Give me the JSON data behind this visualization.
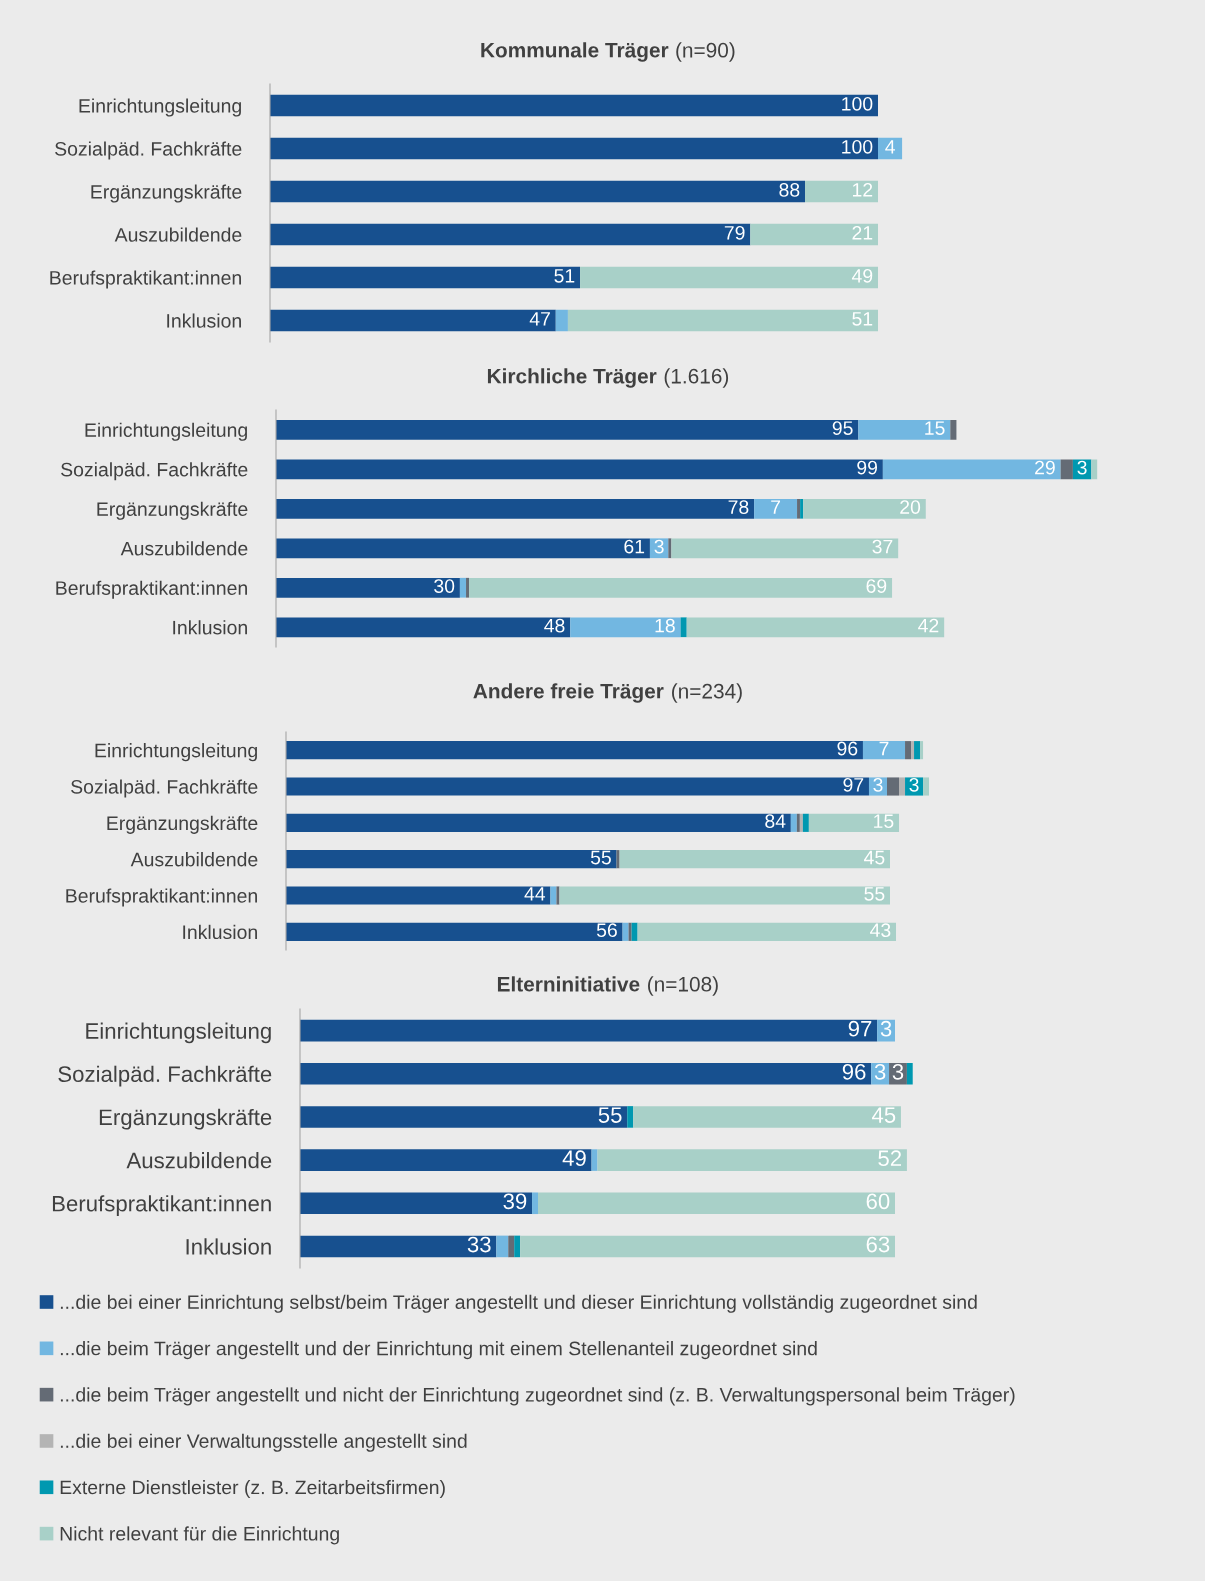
{
  "chart_data": [
    {
      "type": "bar",
      "orientation": "horizontal",
      "stacked": true,
      "title": "Kommunale Träger (n=90)",
      "tick_labels": "y",
      "categories": [
        "Einrichtungsleitung",
        "Sozialpäd. Fachkräfte",
        "Ergänzungskräfte",
        "Auszubildende",
        "Berufspraktikant:innen",
        "Inklusion"
      ],
      "series": [
        {
          "color": "#17508f",
          "values": [
            100,
            100,
            88,
            79,
            51,
            47
          ],
          "value_labels": [
            "100",
            "100",
            "88",
            "79",
            "51",
            "47"
          ]
        },
        {
          "color": "#72b7e1",
          "values": [
            null,
            4,
            null,
            null,
            null,
            2
          ],
          "value_labels": [
            null,
            "4",
            null,
            null,
            null,
            null
          ]
        },
        {
          "color": "#646b75",
          "values": [
            null,
            null,
            null,
            null,
            null,
            null
          ]
        },
        {
          "color": "#b4b4b4",
          "values": [
            null,
            null,
            null,
            null,
            null,
            null
          ]
        },
        {
          "color": "#0098b0",
          "values": [
            null,
            null,
            null,
            null,
            null,
            null
          ]
        },
        {
          "color": "#a8d0c8",
          "values": [
            null,
            null,
            12,
            21,
            49,
            51
          ],
          "value_labels": [
            null,
            null,
            "12",
            "21",
            "49",
            "51"
          ]
        }
      ]
    },
    {
      "type": "bar",
      "orientation": "horizontal",
      "stacked": true,
      "title": "Kirchliche Träger (1.616)",
      "tick_labels": "y",
      "categories": [
        "Einrichtungsleitung",
        "Sozialpäd. Fachkräfte",
        "Ergänzungskräfte",
        "Auszubildende",
        "Berufspraktikant:innen",
        "Inklusion"
      ],
      "series": [
        {
          "color": "#17508f",
          "values": [
            95,
            99,
            78,
            61,
            30,
            48
          ],
          "value_labels": [
            "95",
            "99",
            "78",
            "61",
            "30",
            "48"
          ]
        },
        {
          "color": "#72b7e1",
          "values": [
            15,
            29,
            7,
            3,
            1,
            18
          ],
          "value_labels": [
            "15",
            "29",
            "7",
            "3",
            null,
            "18"
          ]
        },
        {
          "color": "#646b75",
          "values": [
            1,
            2,
            0.5,
            0.5,
            0.5,
            null
          ]
        },
        {
          "color": "#b4b4b4",
          "values": [
            null,
            null,
            null,
            null,
            null,
            null
          ]
        },
        {
          "color": "#0098b0",
          "values": [
            null,
            3,
            0.5,
            null,
            null,
            1
          ],
          "value_labels": [
            null,
            "3",
            null,
            null,
            null,
            null
          ]
        },
        {
          "color": "#a8d0c8",
          "values": [
            null,
            1,
            20,
            37,
            69,
            42
          ],
          "value_labels": [
            null,
            null,
            "20",
            "37",
            "69",
            "42"
          ]
        }
      ]
    },
    {
      "type": "bar",
      "orientation": "horizontal",
      "stacked": true,
      "title": "Andere freie Träger (n=234)",
      "tick_labels": "y",
      "categories": [
        "Einrichtungsleitung",
        "Sozialpäd. Fachkräfte",
        "Ergänzungskräfte",
        "Auszubildende",
        "Berufspraktikant:innen",
        "Inklusion"
      ],
      "series": [
        {
          "color": "#17508f",
          "values": [
            96,
            97,
            84,
            55,
            44,
            56
          ],
          "value_labels": [
            "96",
            "97",
            "84",
            "55",
            "44",
            "56"
          ]
        },
        {
          "color": "#72b7e1",
          "values": [
            7,
            3,
            1,
            null,
            1,
            1
          ],
          "value_labels": [
            "7",
            "3",
            null,
            null,
            null,
            null
          ]
        },
        {
          "color": "#646b75",
          "values": [
            1,
            2,
            0.5,
            0.5,
            0.5,
            0.5
          ]
        },
        {
          "color": "#b4b4b4",
          "values": [
            0.5,
            1,
            0.5,
            null,
            null,
            null
          ]
        },
        {
          "color": "#0098b0",
          "values": [
            1,
            3,
            1,
            null,
            null,
            1
          ],
          "value_labels": [
            null,
            "3",
            null,
            null,
            null,
            null
          ]
        },
        {
          "color": "#a8d0c8",
          "values": [
            0.5,
            1,
            15,
            45,
            55,
            43
          ],
          "value_labels": [
            null,
            null,
            "15",
            "45",
            "55",
            "43"
          ]
        }
      ]
    },
    {
      "type": "bar",
      "orientation": "horizontal",
      "stacked": true,
      "title": "Elterninitiative (n=108)",
      "tick_labels": "y",
      "legend": "bottom",
      "categories": [
        "Einrichtungsleitung",
        "Sozialpäd. Fachkräfte",
        "Ergänzungskräfte",
        "Auszubildende",
        "Berufspraktikant:innen",
        "Inklusion"
      ],
      "series": [
        {
          "name": "...die bei einer Einrichtung selbst/beim Träger angestellt und dieser Einrichtung vollständig zugeordnet sind",
          "color": "#17508f",
          "values": [
            97,
            96,
            55,
            49,
            39,
            33
          ],
          "value_labels": [
            "97",
            "96",
            "55",
            "49",
            "39",
            "33"
          ]
        },
        {
          "name": "...die beim Träger angestellt und der Einrichtung mit einem Stellenanteil zugeordnet sind",
          "color": "#72b7e1",
          "values": [
            3,
            3,
            null,
            1,
            1,
            2
          ],
          "value_labels": [
            "3",
            "3",
            null,
            null,
            null,
            null
          ]
        },
        {
          "name": "...die beim Träger angestellt und nicht der Einrichtung zugeordnet sind (z. B. Verwaltungspersonal beim Träger)",
          "color": "#646b75",
          "values": [
            null,
            3,
            null,
            null,
            null,
            1
          ],
          "value_labels": [
            null,
            "3",
            null,
            null,
            null,
            null
          ]
        },
        {
          "name": "...die bei einer Verwaltungsstelle angestellt sind",
          "color": "#b4b4b4",
          "values": [
            null,
            null,
            null,
            null,
            null,
            null
          ]
        },
        {
          "name": "Externe Dienstleister (z. B. Zeitarbeitsfirmen)",
          "color": "#0098b0",
          "values": [
            null,
            1,
            1,
            null,
            null,
            1
          ]
        },
        {
          "name": "Nicht relevant für die Einrichtung",
          "color": "#a8d0c8",
          "values": [
            null,
            null,
            45,
            52,
            60,
            63
          ],
          "value_labels": [
            null,
            null,
            "45",
            "52",
            "60",
            "63"
          ]
        }
      ]
    }
  ]
}
